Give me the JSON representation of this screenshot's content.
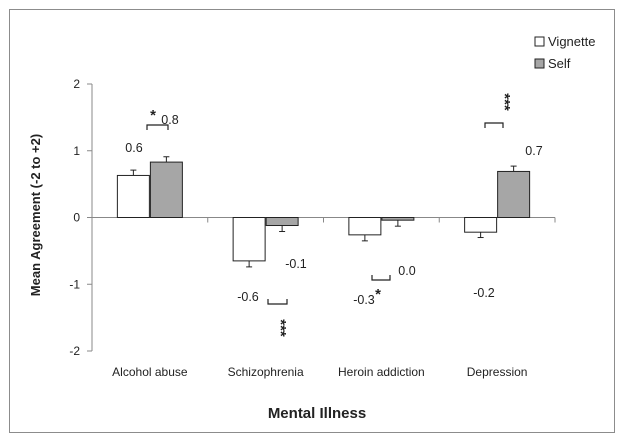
{
  "chart_data": {
    "type": "bar",
    "xlabel": "Mental Illness",
    "ylabel": "Mean Agreement (-2 to +2)",
    "ylim": [
      -2,
      2
    ],
    "yticks": [
      -2,
      -1,
      0,
      1,
      2
    ],
    "categories": [
      "Alcohol abuse",
      "Schizophrenia",
      "Heroin addiction",
      "Depression"
    ],
    "series": [
      {
        "name": "Vignette",
        "values": [
          0.63,
          -0.65,
          -0.26,
          -0.22
        ],
        "errors": [
          0.08,
          0.09,
          0.09,
          0.08
        ],
        "labels": [
          "0.6",
          "-0.6",
          "-0.3",
          "-0.2"
        ],
        "color": "#ffffff"
      },
      {
        "name": "Self",
        "values": [
          0.83,
          -0.12,
          -0.04,
          0.69
        ],
        "errors": [
          0.08,
          0.09,
          0.09,
          0.08
        ],
        "labels": [
          "0.8",
          "-0.1",
          "0.0",
          "0.7"
        ],
        "color": "#a6a6a6"
      }
    ],
    "significance": [
      "*",
      "***",
      "*",
      "***"
    ],
    "legend_position": "top-right",
    "grid": false
  }
}
